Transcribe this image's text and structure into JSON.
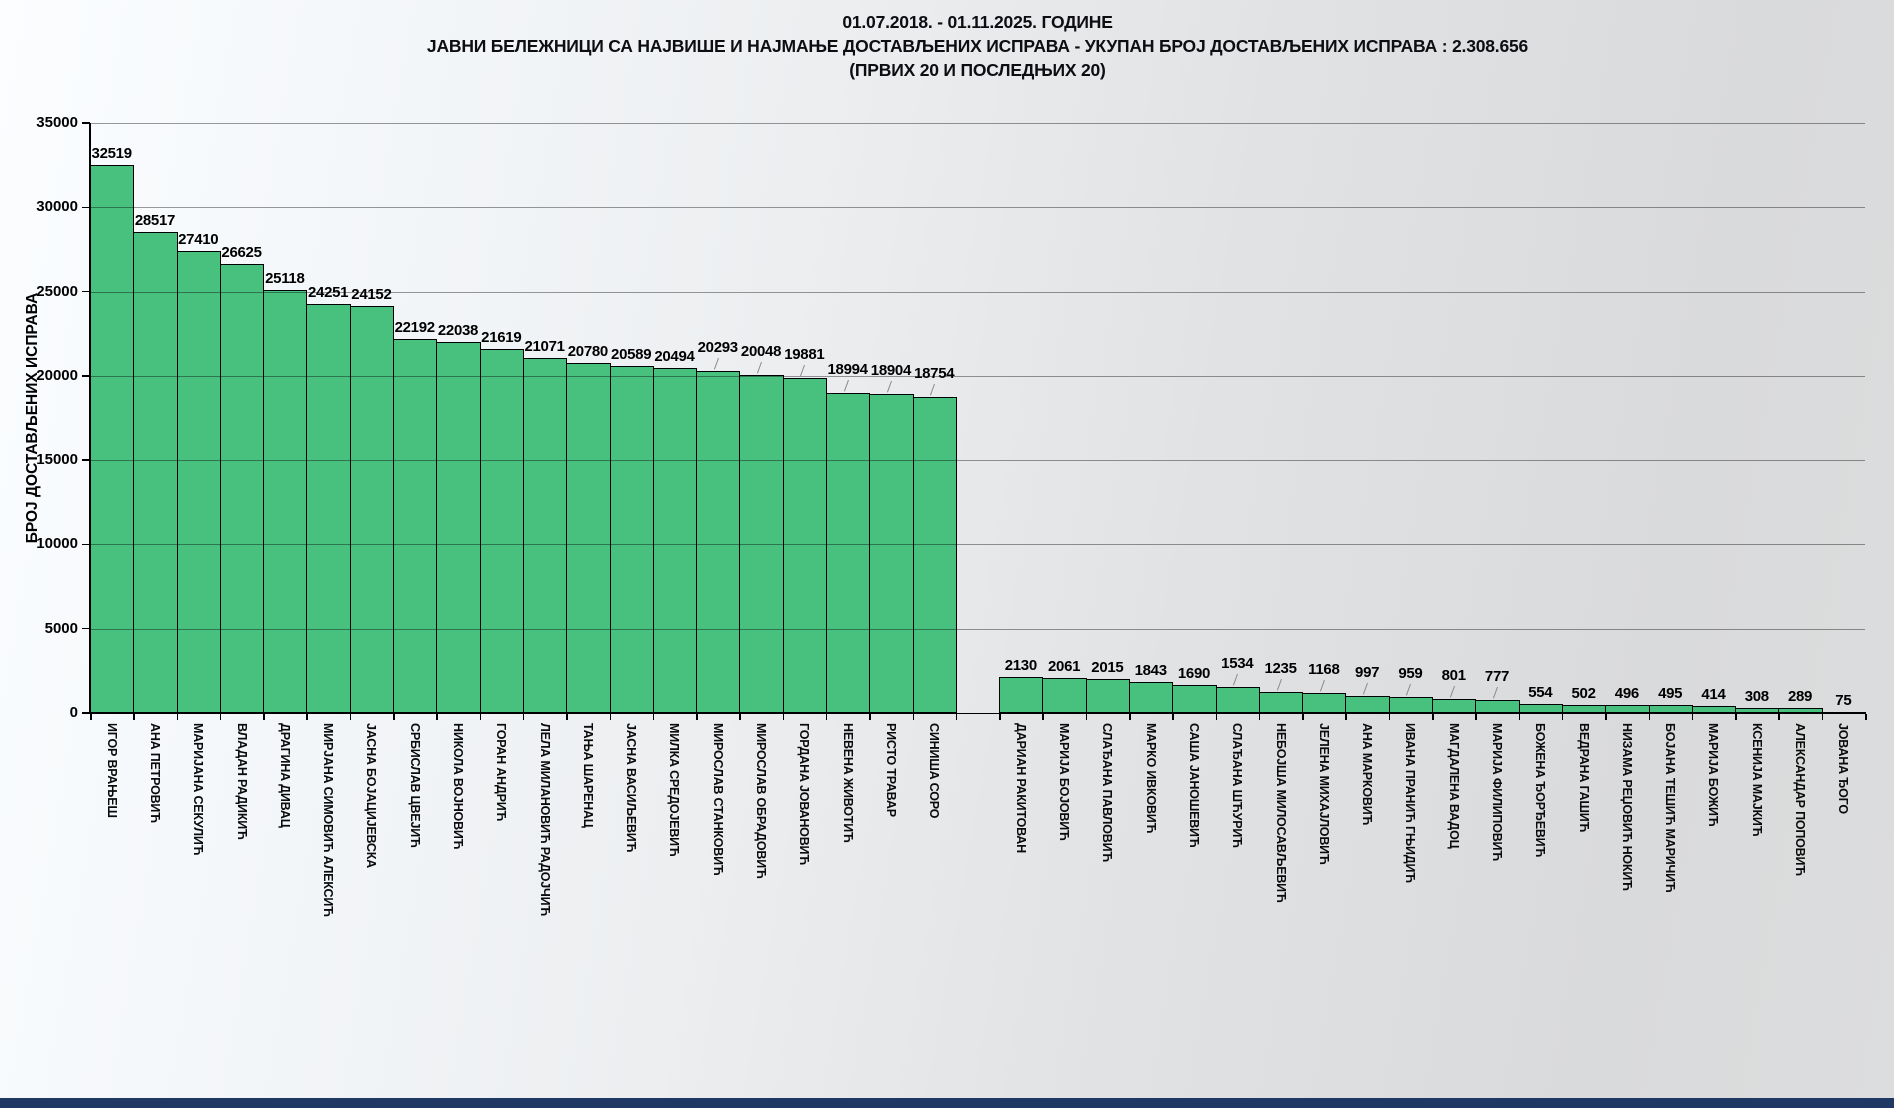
{
  "title": {
    "line1": "01.07.2018. - 01.11.2025. ГОДИНЕ",
    "line2": "ЈАВНИ БЕЛЕЖНИЦИ СА НАЈВИШЕ И НАЈМАЊЕ ДОСТАВЉЕНИХ ИСПРАВА - УКУПАН БРОЈ ДОСТАВЉЕНИХ ИСПРАВА : 2.308.656",
    "line3": "(ПРВИХ 20 И ПОСЛЕДЊИХ 20)"
  },
  "chart_data": {
    "type": "bar",
    "ylabel": "БРОЈ ДОСТАВЉЕНИХ ИСПРАВА",
    "xlabel": "",
    "ylim": [
      0,
      35000
    ],
    "yticks": [
      0,
      5000,
      10000,
      15000,
      20000,
      25000,
      30000,
      35000
    ],
    "grid": true,
    "legend": "none",
    "bar_color": "#49C17E",
    "bar_border_color": "#000000",
    "gridline_color": "#9b9b9b",
    "bottom_strip_color": "#203864",
    "groups": [
      {
        "name": "first-20",
        "bars": [
          {
            "label": "ИГОР ВРАЊЕШ",
            "value": 32519
          },
          {
            "label": "АНА ПЕТРОВИЋ",
            "value": 28517
          },
          {
            "label": "МАРИЈАНА СЕКУЛИЋ",
            "value": 27410
          },
          {
            "label": "ВЛАДАН РАДИКИЋ",
            "value": 26625
          },
          {
            "label": "ДРАГИНА ДИВАЦ",
            "value": 25118
          },
          {
            "label": "МИРЈАНА СИМОВИЋ АЛЕКСИЋ",
            "value": 24251
          },
          {
            "label": "ЈАСНА БОЈАЦИЈЕВСКА",
            "value": 24152
          },
          {
            "label": "СРБИСЛАВ ЦВЕЈИЋ",
            "value": 22192
          },
          {
            "label": "НИКОЛА ВОЈНОВИЋ",
            "value": 22038
          },
          {
            "label": "ГОРАН АНДРИЋ",
            "value": 21619
          },
          {
            "label": "ЛЕЛА МИЛАНОВИЋ РАДОЈЧИЋ",
            "value": 21071
          },
          {
            "label": "ТАЊА ШАРЕНАЦ",
            "value": 20780
          },
          {
            "label": "ЈАСНА ВАСИЉЕВИЋ",
            "value": 20589
          },
          {
            "label": "МИЛКА СРЕДОЈЕВИЋ",
            "value": 20494
          },
          {
            "label": "МИРОСЛАВ СТАНКОВИЋ",
            "value": 20293
          },
          {
            "label": "МИРОСЛАВ ОБРАДОВИЋ",
            "value": 20048
          },
          {
            "label": "ГОРДАНА ЈОВАНОВИЋ",
            "value": 19881
          },
          {
            "label": "НЕВЕНА ЖИВОТИЋ",
            "value": 18994
          },
          {
            "label": "РИСТО ТРАВАР",
            "value": 18904
          },
          {
            "label": "СИНИША СОРО",
            "value": 18754
          }
        ]
      },
      {
        "name": "last-20",
        "bars": [
          {
            "label": "ДАРИАН РАКИТОВАН",
            "value": 2130
          },
          {
            "label": "МАРИЈА БОЈОВИЋ",
            "value": 2061
          },
          {
            "label": "СЛАЂАНА ПАВЛОВИЋ",
            "value": 2015
          },
          {
            "label": "МАРКО ИВКОВИЋ",
            "value": 1843
          },
          {
            "label": "САША ЈАНОШЕВИЋ",
            "value": 1690
          },
          {
            "label": "СЛАЂАНА ШЋУРИЋ",
            "value": 1534
          },
          {
            "label": "НЕБОЈША МИЛОСАВЉЕВИЋ",
            "value": 1235
          },
          {
            "label": "ЈЕЛЕНА МИХАЈЛОВИЋ",
            "value": 1168
          },
          {
            "label": "АНА МАРКОВИЋ",
            "value": 997
          },
          {
            "label": "ИВАНА ПРАНИЋ ГЊИДИЋ",
            "value": 959
          },
          {
            "label": "МАГДАЛЕНА ВАДОЦ",
            "value": 801
          },
          {
            "label": "МАРИЈА ФИЛИПОВИЋ",
            "value": 777
          },
          {
            "label": "БОЖЕНА ЂОРЂЕВИЋ",
            "value": 554
          },
          {
            "label": "ВЕДРАНА ГАШИЋ",
            "value": 502
          },
          {
            "label": "НИЗАМА РЕЏОВИЋ НОКИЋ",
            "value": 496
          },
          {
            "label": "БОЈАНА ТЕШИЋ МАРИЧИЋ",
            "value": 495
          },
          {
            "label": "МАРИЈА БОЖИЋ",
            "value": 414
          },
          {
            "label": "КСЕНИЈА МАЈКИЋ",
            "value": 308
          },
          {
            "label": "АЛЕКСАНДАР ПОПОВИЋ",
            "value": 289
          },
          {
            "label": "ЈОВАНА ЂОГО",
            "value": 75
          }
        ]
      }
    ]
  }
}
